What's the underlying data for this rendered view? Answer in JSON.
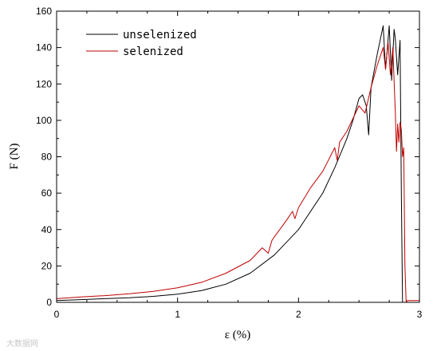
{
  "chart_data": {
    "type": "line",
    "xlabel": "ε (%)",
    "ylabel": "F (N)",
    "xlim": [
      0,
      3
    ],
    "ylim": [
      0,
      160
    ],
    "xticks": [
      0,
      1,
      2,
      3
    ],
    "yticks": [
      0,
      20,
      40,
      60,
      80,
      100,
      120,
      140,
      160
    ],
    "legend_position": "top-left",
    "series": [
      {
        "name": "unselenized",
        "color": "#000000",
        "x": [
          0,
          0.2,
          0.4,
          0.6,
          0.8,
          1.0,
          1.2,
          1.4,
          1.6,
          1.8,
          2.0,
          2.2,
          2.3,
          2.4,
          2.45,
          2.5,
          2.53,
          2.56,
          2.58,
          2.6,
          2.65,
          2.7,
          2.72,
          2.75,
          2.77,
          2.79,
          2.8,
          2.82,
          2.84,
          2.85,
          2.86,
          2.87,
          2.95,
          3.0
        ],
        "y": [
          1,
          1.5,
          2,
          2.5,
          3.3,
          4.5,
          6.5,
          10,
          16,
          26,
          40,
          60,
          74,
          90,
          100,
          112,
          114,
          108,
          92,
          118,
          136,
          152,
          128,
          152,
          122,
          150,
          145,
          125,
          144,
          60,
          0,
          0,
          0,
          0
        ]
      },
      {
        "name": "selenized",
        "color": "#c00000",
        "x": [
          0,
          0.2,
          0.4,
          0.6,
          0.8,
          1.0,
          1.2,
          1.4,
          1.6,
          1.7,
          1.75,
          1.78,
          1.8,
          1.9,
          1.95,
          1.97,
          2.0,
          2.1,
          2.2,
          2.3,
          2.32,
          2.34,
          2.4,
          2.5,
          2.55,
          2.6,
          2.65,
          2.7,
          2.72,
          2.74,
          2.76,
          2.78,
          2.8,
          2.81,
          2.82,
          2.83,
          2.84,
          2.85,
          2.86,
          2.87,
          2.88,
          2.89,
          2.9,
          2.95,
          3.0
        ],
        "y": [
          2,
          3,
          3.7,
          4.7,
          6,
          8,
          11,
          16,
          23,
          30,
          27,
          34,
          36,
          45,
          50,
          46,
          52,
          63,
          72,
          85,
          78,
          88,
          94,
          108,
          104,
          118,
          130,
          140,
          128,
          143,
          125,
          140,
          105,
          83,
          98,
          88,
          99,
          95,
          80,
          85,
          20,
          0,
          1,
          1,
          1
        ]
      }
    ]
  },
  "watermark": "大数据网"
}
